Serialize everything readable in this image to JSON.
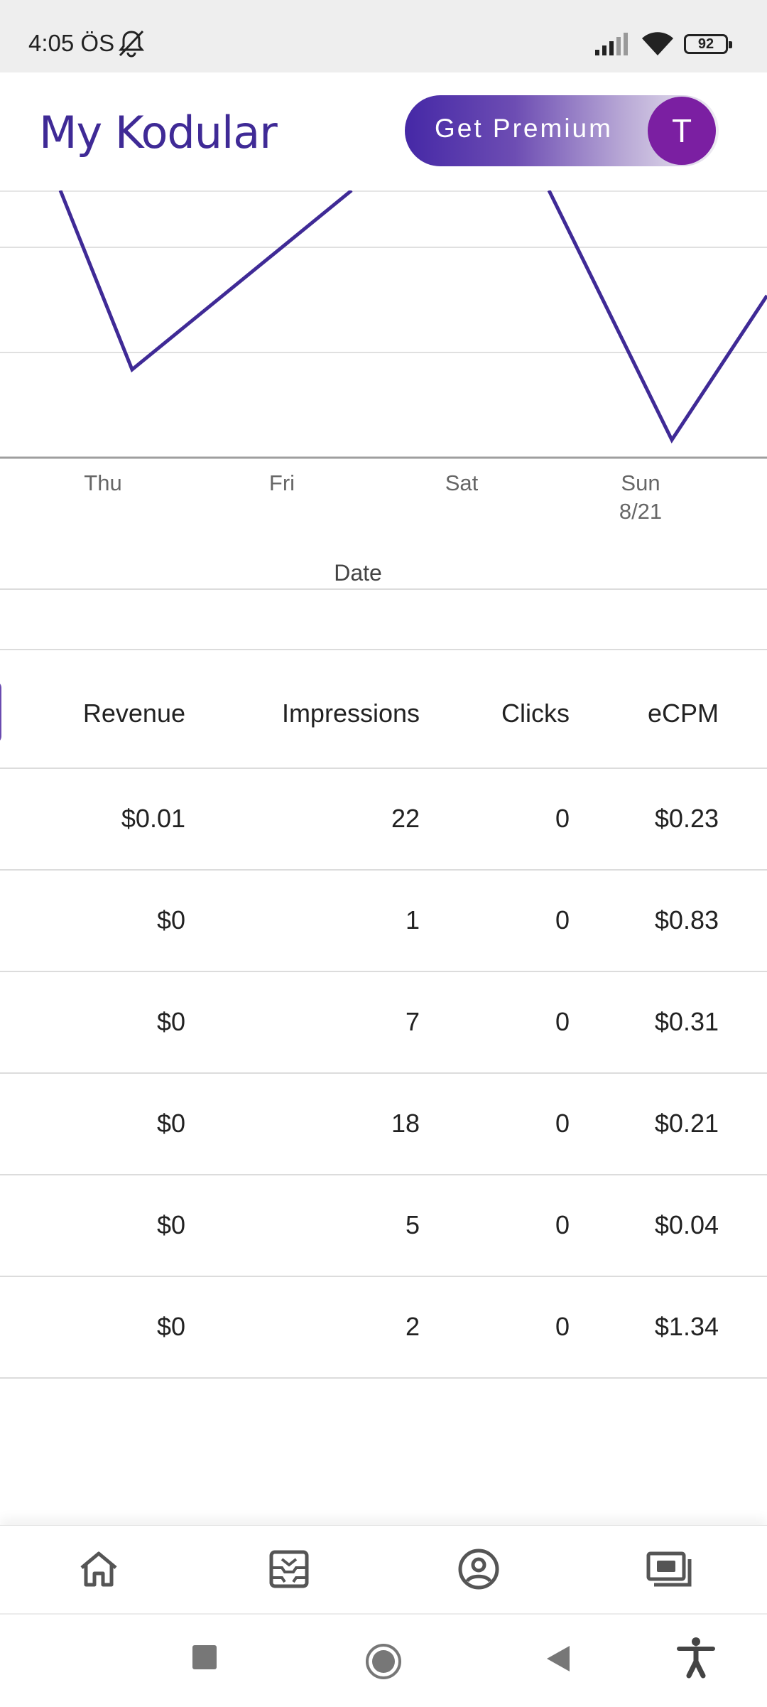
{
  "status": {
    "time": "4:05 ÖS",
    "battery": "92"
  },
  "header": {
    "title": "My Kodular",
    "premium_label": "Get Premium",
    "avatar_letter": "T"
  },
  "chart_data": {
    "type": "line",
    "x": [
      "Thu",
      "Fri",
      "Sat",
      "Sun 8/21"
    ],
    "tick_labels": [
      {
        "line1": "Thu",
        "line2": ""
      },
      {
        "line1": "Fri",
        "line2": ""
      },
      {
        "line1": "Sat",
        "line2": ""
      },
      {
        "line1": "Sun",
        "line2": "8/21"
      }
    ],
    "xlabel": "Date",
    "grid": true,
    "color": "#3f2a96"
  },
  "table": {
    "headers": [
      "Revenue",
      "Impressions",
      "Clicks",
      "eCPM"
    ],
    "rows": [
      [
        "$0.01",
        "22",
        "0",
        "$0.23"
      ],
      [
        "$0",
        "1",
        "0",
        "$0.83"
      ],
      [
        "$0",
        "7",
        "0",
        "$0.31"
      ],
      [
        "$0",
        "18",
        "0",
        "$0.21"
      ],
      [
        "$0",
        "5",
        "0",
        "$0.04"
      ],
      [
        "$0",
        "2",
        "0",
        "$1.34"
      ]
    ]
  },
  "bottom_nav": [
    "home-icon",
    "inbox-icon",
    "account-icon",
    "earnings-icon"
  ],
  "system_nav": [
    "recents-icon",
    "home-circle-icon",
    "back-icon",
    "accessibility-icon"
  ]
}
